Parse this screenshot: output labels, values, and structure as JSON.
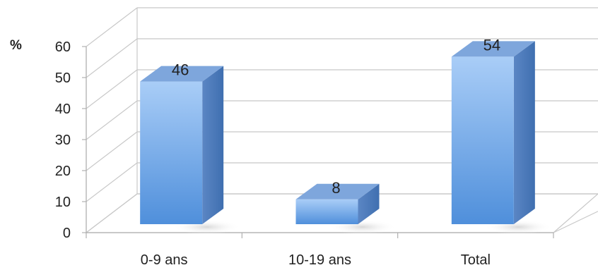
{
  "chart_data": {
    "type": "bar",
    "unit_label": "%",
    "categories": [
      "0-9 ans",
      "10-19 ans",
      "Total"
    ],
    "values": [
      46,
      8,
      54
    ],
    "data_labels": [
      "46",
      "8",
      "54"
    ],
    "ylim": [
      0,
      60
    ],
    "yticks": [
      "0",
      "10",
      "20",
      "30",
      "40",
      "50",
      "60"
    ],
    "grid": true,
    "style": "3d-column",
    "colors": {
      "bar_front_top": "#a9cdf7",
      "bar_front_bottom": "#4f8fdb",
      "bar_top": "#7ea6dc",
      "bar_side": "#3f6fb0",
      "grid": "#c8c8c8"
    }
  }
}
